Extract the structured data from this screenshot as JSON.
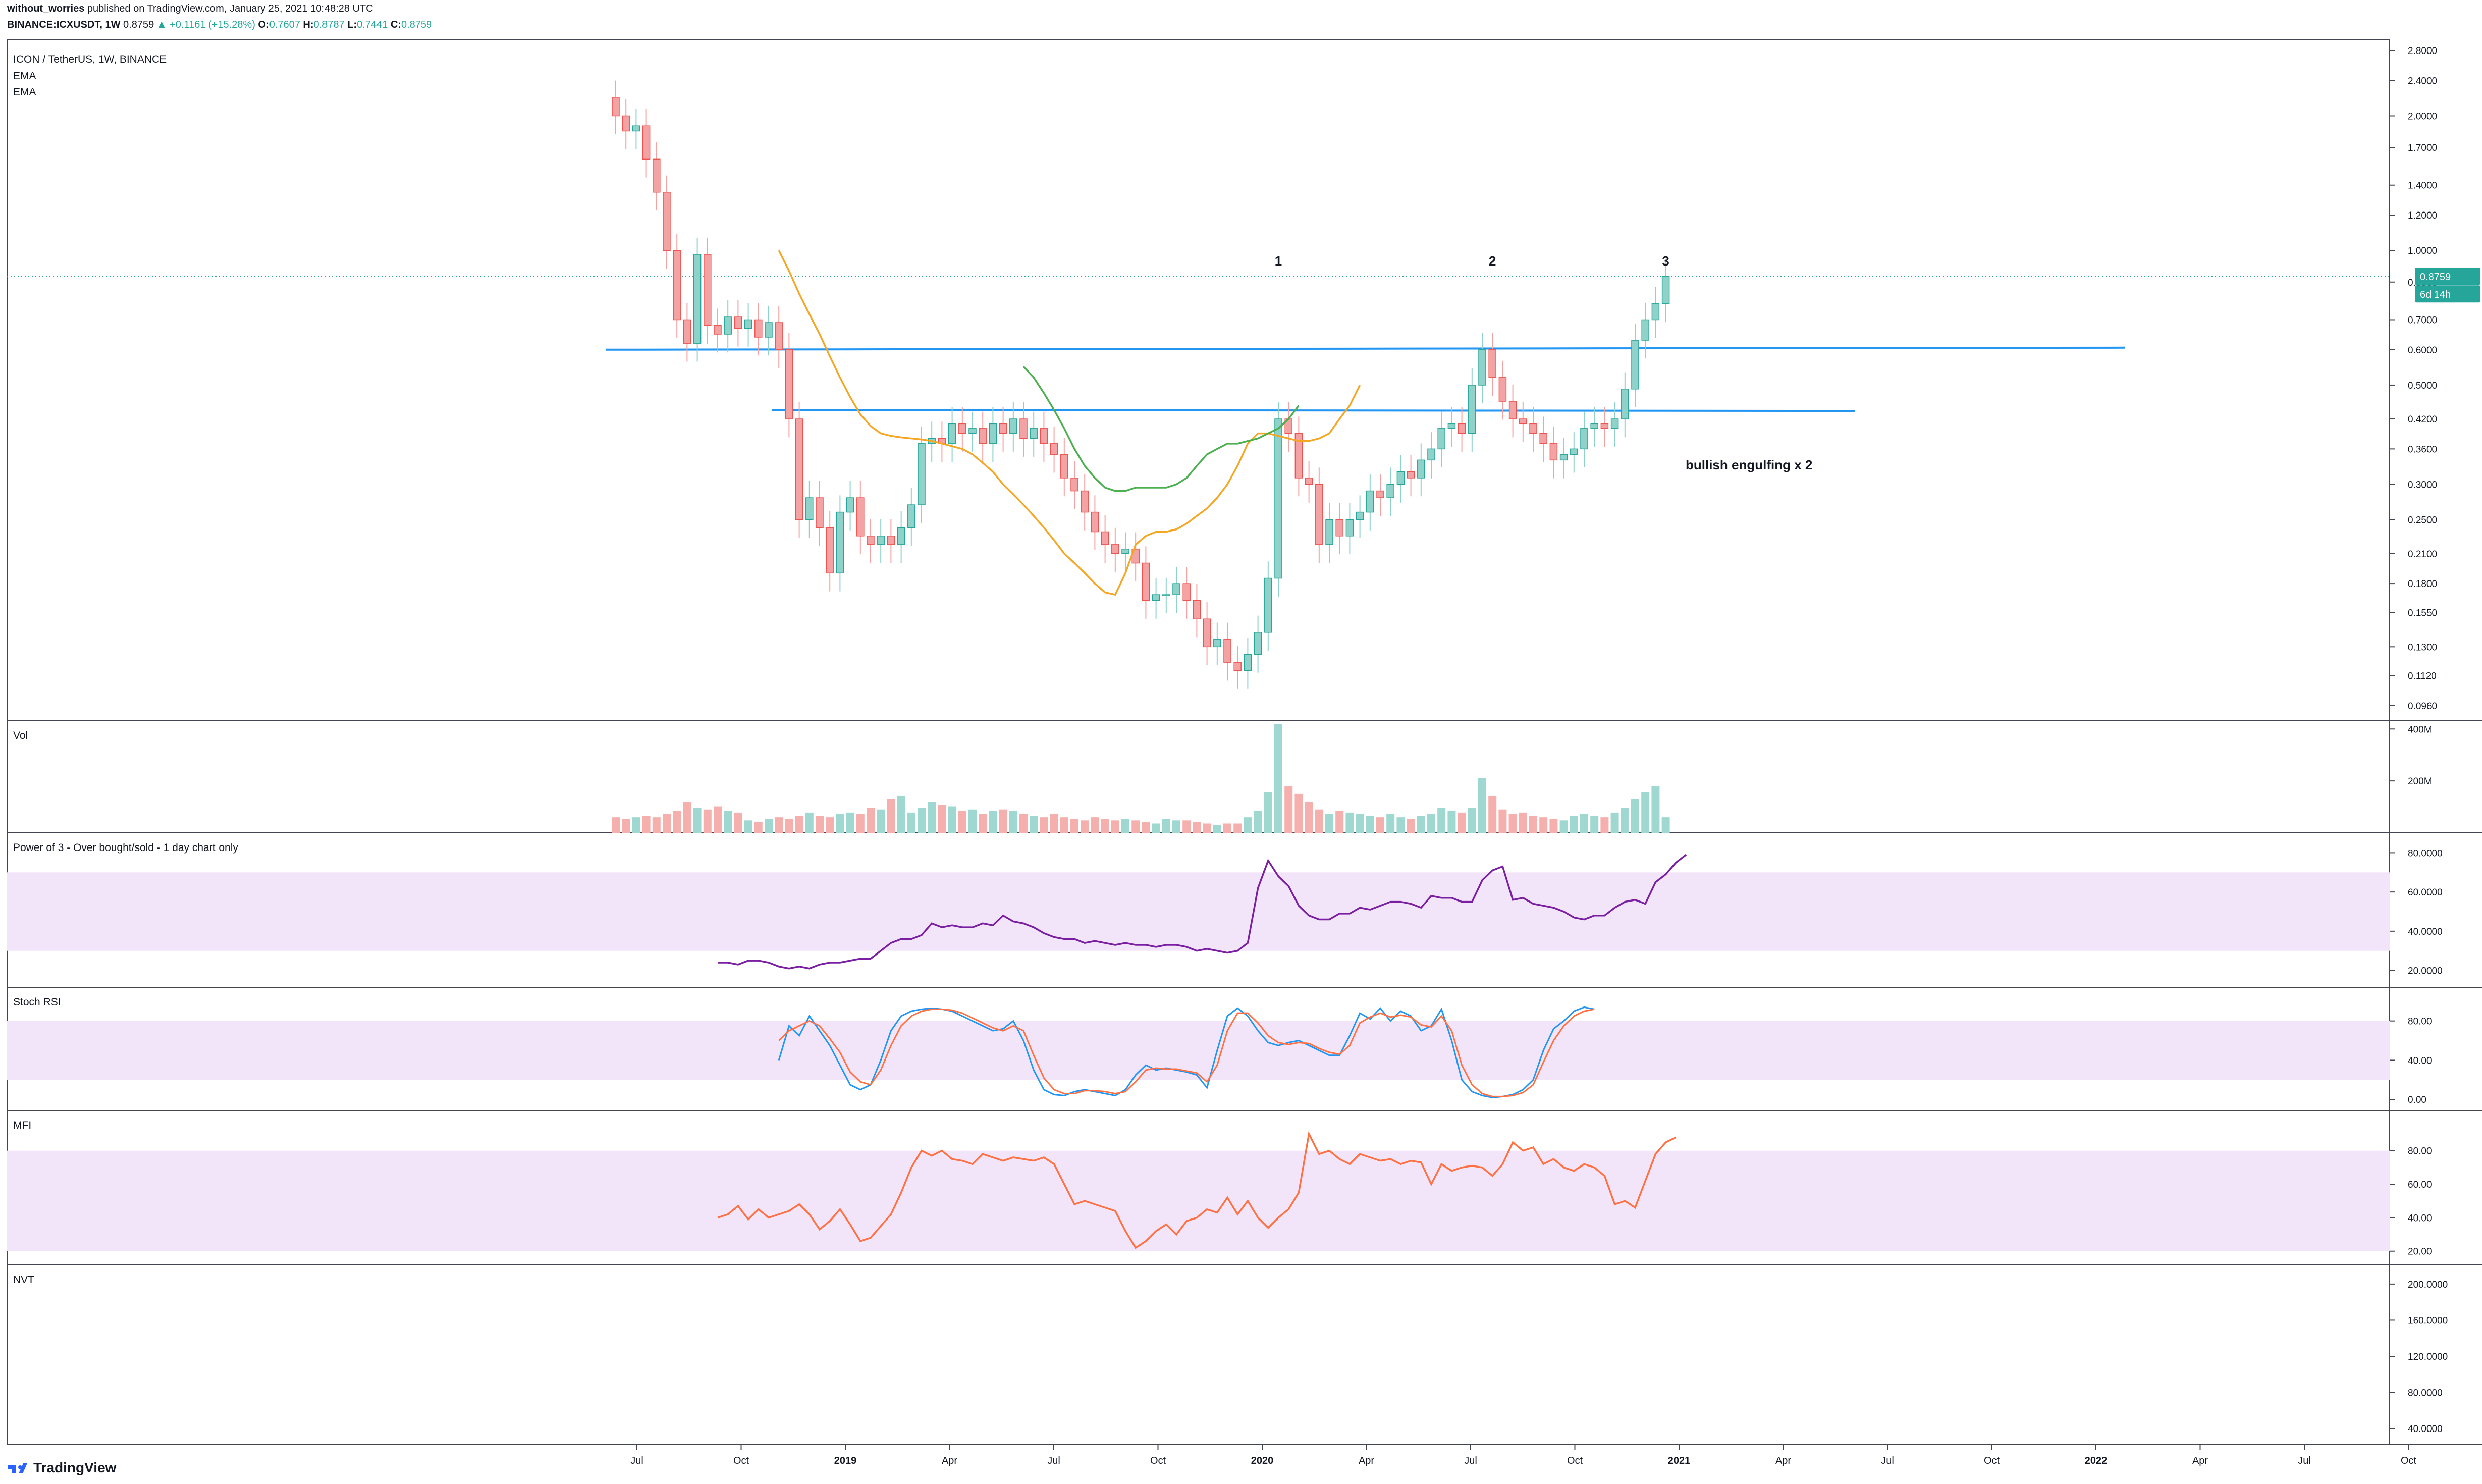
{
  "header": {
    "author": "without_worries",
    "published_text": "published on TradingView.com, January 25, 2021 10:48:28 UTC",
    "symbol": "BINANCE:ICXUSDT, 1W",
    "last_price": "0.8759",
    "change": "▲ +0.1161 (+15.28%)",
    "o_label": "O:",
    "o_value": "0.7607",
    "h_label": "H:",
    "h_value": "0.8787",
    "l_label": "L:",
    "l_value": "0.7441",
    "c_label": "C:",
    "c_value": "0.8759"
  },
  "footer": {
    "brand": "TradingView"
  },
  "colors": {
    "bull": "#26a69a",
    "bear": "#ef5350",
    "bull_body": "#8fd2c9",
    "bear_body": "#f3a3a3",
    "ema_fast": "#f5a623",
    "ema_slow": "#4caf50",
    "hline": "#2196f3",
    "power3": "#7b1fa2",
    "stoch_k": "#2196f3",
    "stoch_d": "#ff7043",
    "mfi": "#ff7043",
    "band": "#f3e5f9"
  },
  "chart_data": [
    {
      "id": "price",
      "type": "candlestick",
      "title": "ICON / TetherUS, 1W, BINANCE",
      "legend": [
        "EMA",
        "EMA"
      ],
      "y_scale": "log",
      "y_ticks": [
        "2.8000",
        "2.4000",
        "2.0000",
        "1.7000",
        "1.4000",
        "1.2000",
        "1.0000",
        "0.8500",
        "0.7000",
        "0.6000",
        "0.5000",
        "0.4200",
        "0.3600",
        "0.3000",
        "0.2500",
        "0.2100",
        "0.1800",
        "0.1550",
        "0.1300",
        "0.1120",
        "0.0960"
      ],
      "x_ticks": [
        "Jul",
        "Oct",
        "2019",
        "Apr",
        "Jul",
        "Oct",
        "2020",
        "Apr",
        "Jul",
        "Oct",
        "2021",
        "Apr",
        "Jul",
        "Oct",
        "2022",
        "Apr",
        "Jul",
        "Oct"
      ],
      "x_start": "2018-06-18",
      "bar_interval": "1W",
      "closes": [
        2.0,
        1.85,
        1.9,
        1.6,
        1.35,
        1.0,
        0.7,
        0.62,
        0.98,
        0.68,
        0.65,
        0.71,
        0.67,
        0.7,
        0.64,
        0.69,
        0.6,
        0.42,
        0.25,
        0.28,
        0.24,
        0.19,
        0.26,
        0.28,
        0.23,
        0.22,
        0.23,
        0.22,
        0.24,
        0.27,
        0.37,
        0.38,
        0.37,
        0.41,
        0.39,
        0.4,
        0.37,
        0.41,
        0.39,
        0.42,
        0.38,
        0.4,
        0.37,
        0.35,
        0.31,
        0.29,
        0.26,
        0.235,
        0.22,
        0.21,
        0.215,
        0.2,
        0.165,
        0.17,
        0.17,
        0.18,
        0.165,
        0.15,
        0.13,
        0.135,
        0.12,
        0.115,
        0.125,
        0.14,
        0.185,
        0.42,
        0.39,
        0.31,
        0.3,
        0.22,
        0.25,
        0.23,
        0.25,
        0.26,
        0.29,
        0.28,
        0.3,
        0.32,
        0.31,
        0.34,
        0.36,
        0.4,
        0.41,
        0.39,
        0.5,
        0.6,
        0.52,
        0.46,
        0.42,
        0.41,
        0.39,
        0.37,
        0.34,
        0.35,
        0.36,
        0.4,
        0.41,
        0.4,
        0.42,
        0.49,
        0.63,
        0.7,
        0.76,
        0.8759
      ],
      "highs_note": "wicks approximate",
      "ema_fast": {
        "start_index": 16,
        "values": [
          1.0,
          0.9,
          0.8,
          0.72,
          0.65,
          0.58,
          0.52,
          0.47,
          0.43,
          0.405,
          0.39,
          0.385,
          0.382,
          0.38,
          0.378,
          0.375,
          0.37,
          0.365,
          0.36,
          0.35,
          0.335,
          0.32,
          0.3,
          0.285,
          0.27,
          0.255,
          0.24,
          0.225,
          0.21,
          0.2,
          0.19,
          0.18,
          0.172,
          0.17,
          0.19,
          0.22,
          0.23,
          0.235,
          0.235,
          0.238,
          0.245,
          0.255,
          0.265,
          0.28,
          0.3,
          0.33,
          0.37,
          0.39,
          0.39,
          0.385,
          0.38,
          0.375,
          0.375,
          0.38,
          0.39,
          0.42,
          0.45,
          0.5
        ]
      },
      "ema_slow": {
        "start_index": 40,
        "values": [
          0.55,
          0.52,
          0.48,
          0.44,
          0.4,
          0.36,
          0.33,
          0.31,
          0.295,
          0.29,
          0.29,
          0.295,
          0.295,
          0.295,
          0.295,
          0.3,
          0.31,
          0.33,
          0.35,
          0.36,
          0.37,
          0.37,
          0.375,
          0.38,
          0.39,
          0.4,
          0.42,
          0.45
        ]
      },
      "horizontal_lines": [
        0.6,
        0.44
      ],
      "annotations": [
        {
          "text": "1",
          "bar": 65
        },
        {
          "text": "2",
          "bar": 86
        },
        {
          "text": "3",
          "bar": 103
        },
        {
          "text": "bullish engulfing x 2",
          "bar": 103
        }
      ],
      "price_label": "0.8759",
      "countdown_label": "6d 14h"
    },
    {
      "id": "volume",
      "type": "bar",
      "title": "Vol",
      "y_ticks": [
        "400M",
        "200M"
      ],
      "values": [
        10,
        9,
        10,
        11,
        10,
        12,
        14,
        20,
        16,
        15,
        17,
        14,
        13,
        8,
        7,
        9,
        10,
        9,
        11,
        13,
        11,
        10,
        12,
        13,
        12,
        16,
        15,
        22,
        24,
        13,
        16,
        20,
        18,
        17,
        14,
        15,
        12,
        14,
        15,
        14,
        12,
        11,
        10,
        12,
        10,
        9,
        8,
        10,
        9,
        8,
        9,
        8,
        7,
        6,
        9,
        8,
        8,
        7,
        6,
        5,
        6,
        6,
        10,
        14,
        26,
        70,
        30,
        25,
        20,
        15,
        12,
        14,
        13,
        12,
        11,
        10,
        12,
        10,
        9,
        11,
        12,
        16,
        14,
        13,
        16,
        35,
        24,
        15,
        12,
        13,
        11,
        10,
        9,
        8,
        11,
        12,
        11,
        10,
        13,
        16,
        22,
        26,
        30,
        10
      ]
    },
    {
      "id": "power3",
      "type": "line",
      "title": "Power of 3 - Over bought/sold - 1 day chart only",
      "y_ticks": [
        "80.0000",
        "60.0000",
        "40.0000",
        "20.0000"
      ],
      "band": [
        30,
        70
      ],
      "start_index": 10,
      "values": [
        24,
        24,
        23,
        25,
        25,
        24,
        22,
        21,
        22,
        21,
        23,
        24,
        24,
        25,
        26,
        26,
        30,
        34,
        36,
        36,
        38,
        44,
        42,
        43,
        42,
        42,
        44,
        43,
        48,
        45,
        44,
        42,
        39,
        37,
        36,
        36,
        34,
        35,
        34,
        33,
        34,
        33,
        33,
        32,
        33,
        33,
        32,
        30,
        31,
        30,
        29,
        30,
        34,
        62,
        76,
        68,
        63,
        53,
        48,
        46,
        46,
        49,
        49,
        52,
        51,
        53,
        55,
        55,
        54,
        52,
        58,
        57,
        57,
        55,
        55,
        66,
        71,
        73,
        56,
        57,
        54,
        53,
        52,
        50,
        47,
        46,
        48,
        48,
        52,
        55,
        56,
        54,
        65,
        69,
        75,
        79
      ]
    },
    {
      "id": "stoch_rsi",
      "type": "line",
      "title": "Stoch RSI",
      "y_ticks": [
        "80.00",
        "40.00",
        "0.00"
      ],
      "band": [
        20,
        80
      ],
      "start_index": 16,
      "series": [
        {
          "values": [
            40,
            75,
            65,
            85,
            70,
            55,
            35,
            15,
            10,
            15,
            40,
            70,
            85,
            90,
            92,
            93,
            92,
            90,
            85,
            80,
            75,
            70,
            72,
            80,
            60,
            30,
            10,
            5,
            4,
            8,
            10,
            8,
            6,
            4,
            10,
            25,
            35,
            30,
            32,
            30,
            28,
            25,
            12,
            50,
            85,
            93,
            85,
            70,
            58,
            55,
            58,
            60,
            55,
            50,
            45,
            45,
            65,
            88,
            82,
            93,
            80,
            90,
            85,
            70,
            75,
            92,
            60,
            20,
            8,
            4,
            2,
            3,
            5,
            10,
            20,
            50,
            72,
            80,
            90,
            94,
            92
          ]
        },
        {
          "values": [
            60,
            70,
            75,
            80,
            75,
            62,
            48,
            28,
            18,
            15,
            30,
            55,
            75,
            85,
            90,
            92,
            92,
            91,
            88,
            83,
            78,
            73,
            70,
            75,
            70,
            45,
            22,
            10,
            6,
            6,
            9,
            9,
            8,
            6,
            8,
            18,
            30,
            32,
            31,
            31,
            29,
            27,
            18,
            35,
            70,
            88,
            88,
            78,
            65,
            58,
            56,
            58,
            57,
            52,
            48,
            46,
            55,
            78,
            84,
            88,
            84,
            86,
            84,
            76,
            74,
            85,
            70,
            35,
            15,
            6,
            3,
            3,
            4,
            7,
            15,
            38,
            60,
            75,
            85,
            90,
            92
          ]
        }
      ]
    },
    {
      "id": "mfi",
      "type": "line",
      "title": "MFI",
      "y_ticks": [
        "80.00",
        "60.00",
        "40.00",
        "20.00"
      ],
      "band": [
        20,
        80
      ],
      "start_index": 10,
      "values": [
        40,
        42,
        47,
        39,
        45,
        40,
        42,
        44,
        48,
        42,
        33,
        38,
        45,
        36,
        26,
        28,
        35,
        42,
        55,
        70,
        80,
        77,
        80,
        75,
        74,
        72,
        78,
        76,
        74,
        76,
        75,
        74,
        76,
        72,
        60,
        48,
        50,
        48,
        46,
        44,
        32,
        22,
        26,
        32,
        36,
        30,
        38,
        40,
        45,
        43,
        52,
        42,
        50,
        40,
        34,
        40,
        45,
        55,
        90,
        78,
        80,
        75,
        72,
        78,
        76,
        74,
        75,
        72,
        74,
        73,
        60,
        72,
        68,
        70,
        71,
        70,
        65,
        72,
        85,
        80,
        82,
        72,
        75,
        70,
        68,
        72,
        70,
        65,
        48,
        50,
        46,
        62,
        78,
        85,
        88
      ]
    },
    {
      "id": "nvt",
      "type": "line",
      "title": "NVT",
      "y_ticks": [
        "200.0000",
        "160.0000",
        "120.0000",
        "80.0000",
        "40.0000"
      ],
      "values": []
    }
  ]
}
